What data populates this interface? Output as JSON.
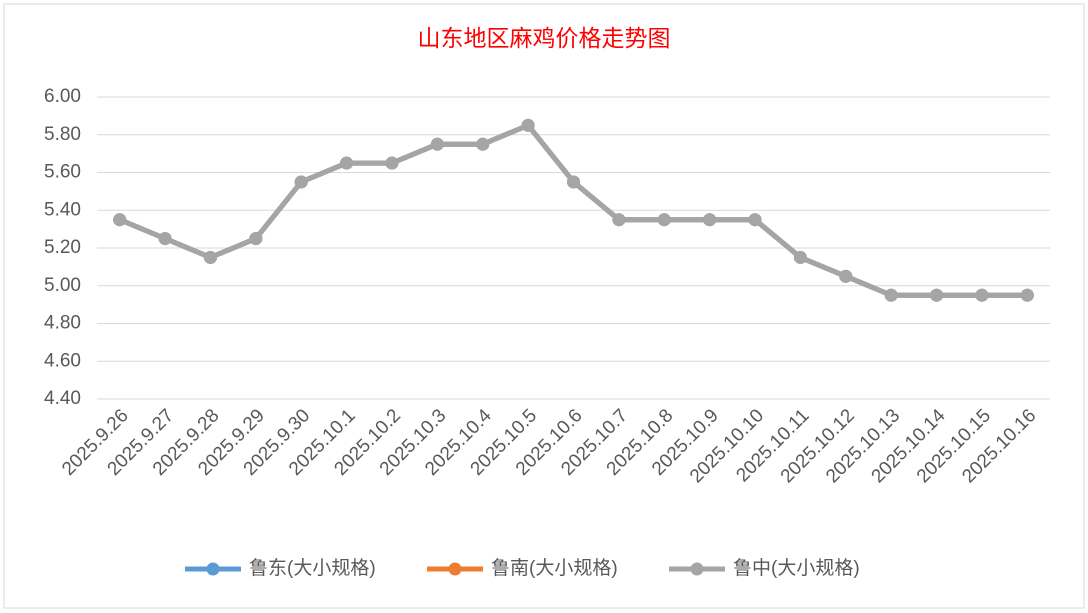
{
  "chart_data": {
    "type": "line",
    "title": "山东地区麻鸡价格走势图",
    "categories": [
      "2025.9.26",
      "2025.9.27",
      "2025.9.28",
      "2025.9.29",
      "2025.9.30",
      "2025.10.1",
      "2025.10.2",
      "2025.10.3",
      "2025.10.4",
      "2025.10.5",
      "2025.10.6",
      "2025.10.7",
      "2025.10.8",
      "2025.10.9",
      "2025.10.10",
      "2025.10.11",
      "2025.10.12",
      "2025.10.13",
      "2025.10.14",
      "2025.10.15",
      "2025.10.16"
    ],
    "series": [
      {
        "name": "鲁东(大小规格)",
        "color": "#5b9bd5",
        "values": [
          5.35,
          5.25,
          5.15,
          5.25,
          5.55,
          5.65,
          5.65,
          5.75,
          5.75,
          5.85,
          5.55,
          5.35,
          5.35,
          5.35,
          5.35,
          5.15,
          5.05,
          4.95,
          4.95,
          4.95,
          4.95
        ]
      },
      {
        "name": "鲁南(大小规格)",
        "color": "#ed7d31",
        "values": [
          5.35,
          5.25,
          5.15,
          5.25,
          5.55,
          5.65,
          5.65,
          5.75,
          5.75,
          5.85,
          5.55,
          5.35,
          5.35,
          5.35,
          5.35,
          5.15,
          5.05,
          4.95,
          4.95,
          4.95,
          4.95
        ]
      },
      {
        "name": "鲁中(大小规格)",
        "color": "#a5a5a5",
        "values": [
          5.35,
          5.25,
          5.15,
          5.25,
          5.55,
          5.65,
          5.65,
          5.75,
          5.75,
          5.85,
          5.55,
          5.35,
          5.35,
          5.35,
          5.35,
          5.15,
          5.05,
          4.95,
          4.95,
          4.95,
          4.95
        ]
      }
    ],
    "ylim": [
      4.4,
      6.0
    ],
    "yticks": [
      {
        "value": 4.4,
        "label": "4.40"
      },
      {
        "value": 4.6,
        "label": "4.60"
      },
      {
        "value": 4.8,
        "label": "4.80"
      },
      {
        "value": 5.0,
        "label": "5.00"
      },
      {
        "value": 5.2,
        "label": "5.20"
      },
      {
        "value": 5.4,
        "label": "5.40"
      },
      {
        "value": 5.6,
        "label": "5.60"
      },
      {
        "value": 5.8,
        "label": "5.80"
      },
      {
        "value": 6.0,
        "label": "6.00"
      }
    ],
    "grid": true,
    "legend": "bottom"
  }
}
